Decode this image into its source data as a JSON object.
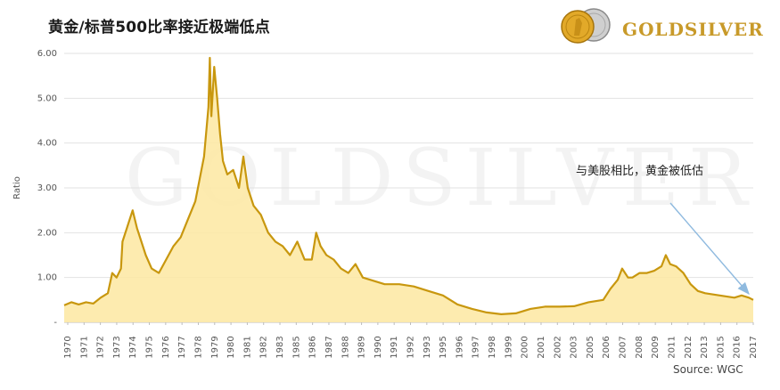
{
  "title": "黄金/标普500比率接近极端低点",
  "logo": {
    "brand_text": "GOLDSILVER",
    "coin_icon": "gold-silver-coins-icon"
  },
  "watermark": "GOLDSILVER",
  "annotation": "与美股相比，黄金被低估",
  "source": "Source: WGC",
  "colors": {
    "line": "#c8970e",
    "fill": "#fde9a6",
    "grid": "#e2e2e2",
    "arrow": "#8fbadf",
    "brand": "#c89a2a"
  },
  "chart_data": {
    "type": "area",
    "ylabel": "Ratio",
    "xlabel": "",
    "ylim": [
      0,
      6
    ],
    "xlim": [
      1970,
      2017.3
    ],
    "y_ticks": [
      {
        "value": 0,
        "label": "-"
      },
      {
        "value": 1,
        "label": "1.00"
      },
      {
        "value": 2,
        "label": "2.00"
      },
      {
        "value": 3,
        "label": "3.00"
      },
      {
        "value": 4,
        "label": "4.00"
      },
      {
        "value": 5,
        "label": "5.00"
      },
      {
        "value": 6,
        "label": "6.00"
      }
    ],
    "x_ticks": [
      "1970",
      "1971",
      "1972",
      "1973",
      "1974",
      "1975",
      "1976",
      "1977",
      "1978",
      "1979",
      "1980",
      "1981",
      "1982",
      "1983",
      "1985",
      "1986",
      "1987",
      "1988",
      "1989",
      "1990",
      "1991",
      "1992",
      "1993",
      "1995",
      "1996",
      "1997",
      "1998",
      "1999",
      "2000",
      "2001",
      "2002",
      "2003",
      "2005",
      "2006",
      "2007",
      "2008",
      "2009",
      "2011",
      "2012",
      "2013",
      "2015",
      "2016",
      "2017"
    ],
    "grid": "horizontal",
    "series": [
      {
        "x": [
          1970,
          1970.5,
          1971,
          1971.5,
          1972,
          1972.5,
          1973,
          1973.3,
          1973.6,
          1973.9,
          1974,
          1974.3,
          1974.7,
          1975,
          1975.3,
          1975.6,
          1976,
          1976.5,
          1977,
          1977.5,
          1978,
          1978.5,
          1979,
          1979.3,
          1979.6,
          1979.9,
          1980,
          1980.1,
          1980.3,
          1980.5,
          1980.7,
          1980.9,
          1981.2,
          1981.6,
          1982,
          1982.3,
          1982.6,
          1983,
          1983.5,
          1984,
          1984.5,
          1985,
          1985.5,
          1986,
          1986.5,
          1987,
          1987.3,
          1987.6,
          1988,
          1988.5,
          1989,
          1989.5,
          1990,
          1990.5,
          1991,
          1992,
          1993,
          1994,
          1995,
          1996,
          1997,
          1998,
          1999,
          2000,
          2001,
          2002,
          2003,
          2004,
          2005,
          2006,
          2007,
          2007.5,
          2008,
          2008.3,
          2008.7,
          2009,
          2009.5,
          2010,
          2010.5,
          2011,
          2011.3,
          2011.6,
          2012,
          2012.5,
          2013,
          2013.5,
          2014,
          2015,
          2016,
          2016.5,
          2017,
          2017.3
        ],
        "values": [
          0.38,
          0.45,
          0.4,
          0.45,
          0.42,
          0.55,
          0.65,
          1.1,
          1.0,
          1.2,
          1.8,
          2.1,
          2.5,
          2.1,
          1.8,
          1.5,
          1.2,
          1.1,
          1.4,
          1.7,
          1.9,
          2.3,
          2.7,
          3.2,
          3.7,
          4.8,
          5.9,
          4.6,
          5.7,
          5.0,
          4.2,
          3.6,
          3.3,
          3.4,
          3.0,
          3.7,
          3.0,
          2.6,
          2.4,
          2.0,
          1.8,
          1.7,
          1.5,
          1.8,
          1.4,
          1.4,
          2.0,
          1.7,
          1.5,
          1.4,
          1.2,
          1.1,
          1.3,
          1.0,
          0.95,
          0.85,
          0.85,
          0.8,
          0.7,
          0.6,
          0.4,
          0.3,
          0.22,
          0.18,
          0.2,
          0.3,
          0.35,
          0.35,
          0.36,
          0.45,
          0.5,
          0.75,
          0.95,
          1.2,
          1.0,
          1.0,
          1.1,
          1.1,
          1.15,
          1.25,
          1.5,
          1.3,
          1.25,
          1.1,
          0.85,
          0.7,
          0.65,
          0.6,
          0.55,
          0.6,
          0.55,
          0.5
        ]
      }
    ]
  }
}
